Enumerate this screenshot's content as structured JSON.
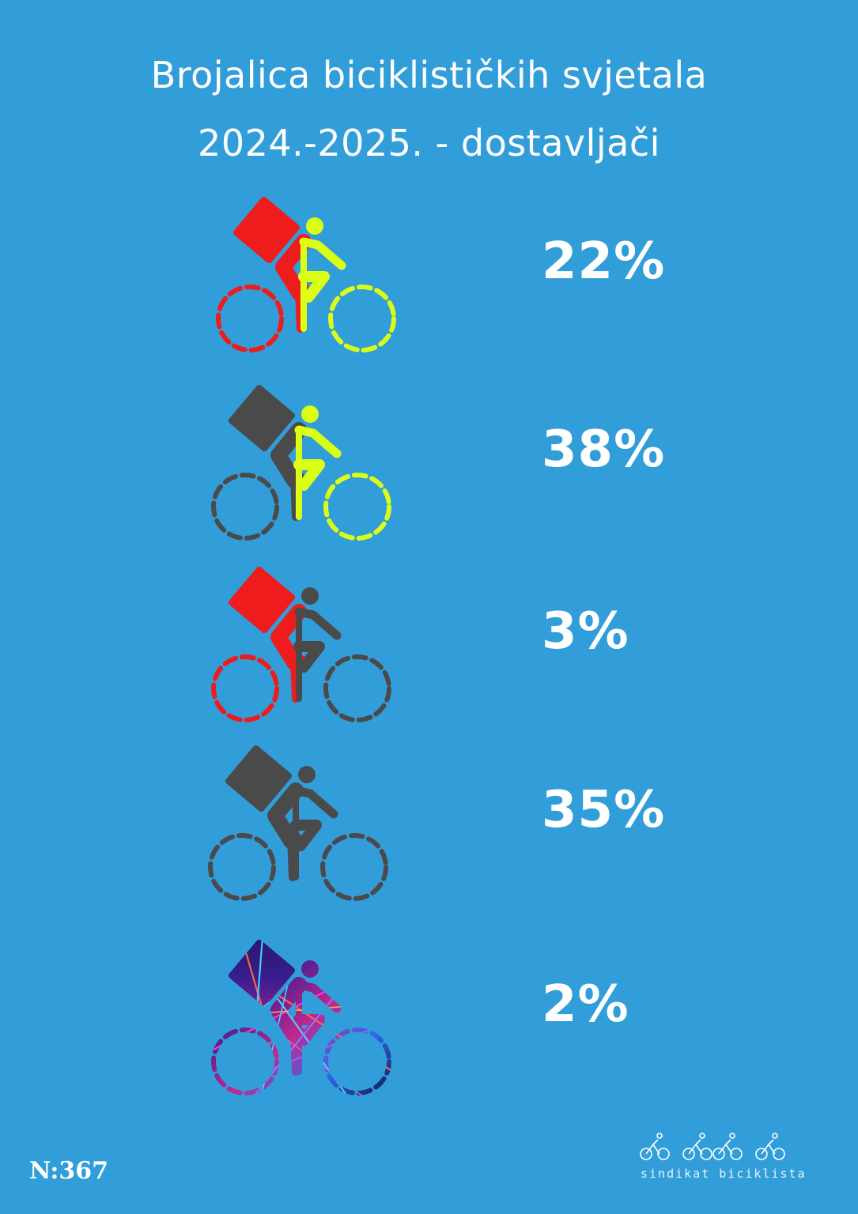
{
  "header": {
    "title_line1": "Brojalica biciklističkih svjetala",
    "title_line2": "2024.-2025. - dostavljači"
  },
  "colors": {
    "background": "#319ed9",
    "light_on_rear": "#ee1c1c",
    "light_on_front": "#dcff16",
    "light_off": "#4b4a4b"
  },
  "chart_data": {
    "type": "pictogram",
    "title": "Brojalica biciklističkih svjetala 2024.-2025. - dostavljači",
    "unit": "%",
    "items": [
      {
        "icon": "delivery-cyclist-rear-and-front-light-icon",
        "rear": "red",
        "front": "yellow",
        "value": 22,
        "label": "22%"
      },
      {
        "icon": "delivery-cyclist-front-light-only-icon",
        "rear": "off",
        "front": "yellow",
        "value": 38,
        "label": "38%"
      },
      {
        "icon": "delivery-cyclist-rear-light-only-icon",
        "rear": "red",
        "front": "off",
        "value": 3,
        "label": "3%"
      },
      {
        "icon": "delivery-cyclist-no-lights-icon",
        "rear": "off",
        "front": "off",
        "value": 35,
        "label": "35%"
      },
      {
        "icon": "delivery-cyclist-other-lights-icon",
        "rear": "multicolor",
        "front": "multicolor",
        "value": 2,
        "label": "2%"
      }
    ]
  },
  "footer": {
    "sample_size": "N:367",
    "logo_text": "sindikat biciklista"
  }
}
